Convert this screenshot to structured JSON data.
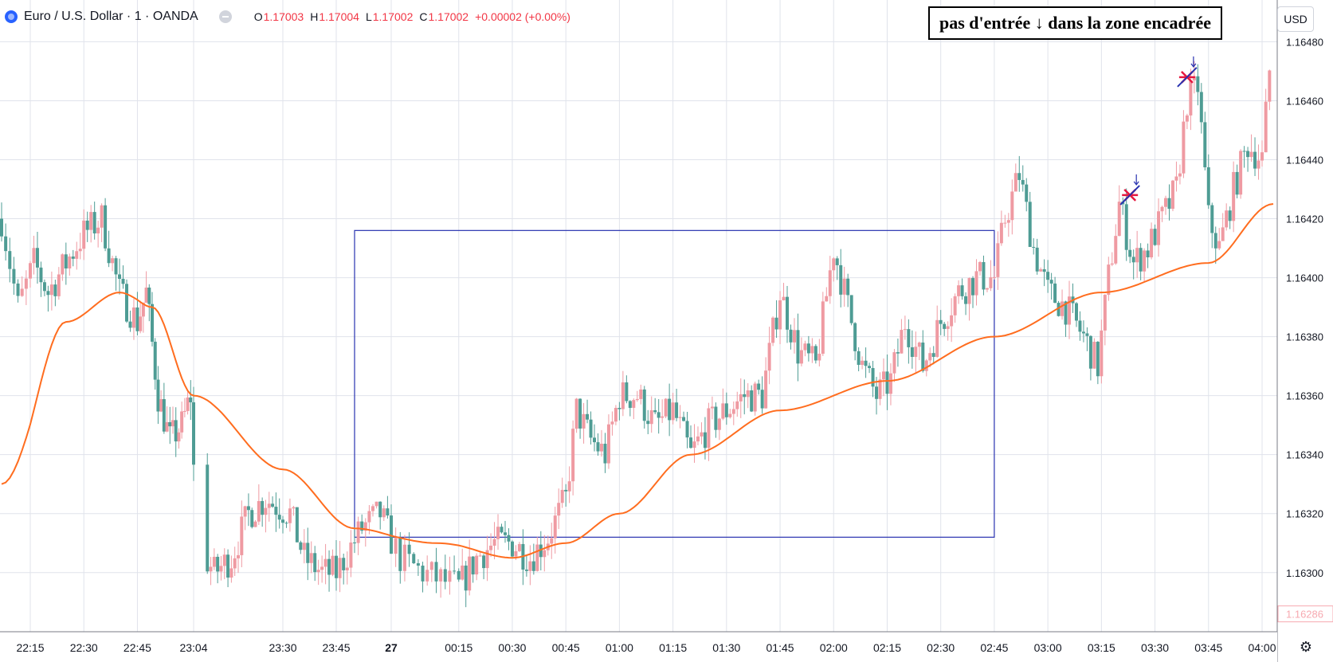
{
  "header": {
    "symbol": "Euro / U.S. Dollar · 1 · OANDA",
    "ohlc": {
      "o_label": "O",
      "o": "1.17003",
      "h_label": "H",
      "h": "1.17004",
      "l_label": "L",
      "l": "1.17002",
      "c_label": "C",
      "c": "1.17002",
      "change": "+0.00002 (+0.00%)"
    }
  },
  "note": "pas d'entrée ↓ dans la zone encadrée",
  "currency_button": "USD",
  "colors": {
    "up": "#ef9aa2",
    "down": "#4e9c94",
    "ma": "#ff6d1f",
    "box": "#2832b0",
    "grid": "#e0e3eb",
    "marker_x": "#e5173f",
    "marker_arrow": "#2832b0"
  },
  "chart_data": {
    "type": "candlestick",
    "ylim": [
      1.16284,
      1.16482
    ],
    "y_ticks": [
      "1.16300",
      "1.16320",
      "1.16340",
      "1.16360",
      "1.16380",
      "1.16400",
      "1.16420",
      "1.16440",
      "1.16460",
      "1.16480"
    ],
    "last_price_label": "1.16286",
    "x_ticks": [
      "22:15",
      "22:30",
      "22:45",
      "23:04",
      "23:30",
      "23:45",
      "27",
      "00:15",
      "00:30",
      "00:45",
      "01:00",
      "01:15",
      "01:30",
      "01:45",
      "02:00",
      "02:15",
      "02:30",
      "02:45",
      "03:00",
      "03:15",
      "03:30",
      "03:45",
      "04:00"
    ],
    "price_path": [
      [
        "22:08",
        1.1642
      ],
      [
        "22:12",
        1.1639
      ],
      [
        "22:16",
        1.16405
      ],
      [
        "22:20",
        1.16395
      ],
      [
        "22:25",
        1.16405
      ],
      [
        "22:30",
        1.16415
      ],
      [
        "22:35",
        1.1642
      ],
      [
        "22:40",
        1.16395
      ],
      [
        "22:45",
        1.16385
      ],
      [
        "22:48",
        1.16395
      ],
      [
        "22:52",
        1.1636
      ],
      [
        "22:56",
        1.16345
      ],
      [
        "23:00",
        1.1635
      ],
      [
        "23:03",
        1.1636
      ],
      [
        "23:05",
        1.1631
      ],
      [
        "23:10",
        1.163
      ],
      [
        "23:15",
        1.16305
      ],
      [
        "23:20",
        1.1632
      ],
      [
        "23:25",
        1.16325
      ],
      [
        "23:32",
        1.1632
      ],
      [
        "23:36",
        1.16305
      ],
      [
        "23:41",
        1.163
      ],
      [
        "23:45",
        1.163
      ],
      [
        "23:52",
        1.16315
      ],
      [
        "23:57",
        1.1632
      ],
      [
        "00:02",
        1.16305
      ],
      [
        "00:07",
        1.163
      ],
      [
        "00:15",
        1.16295
      ],
      [
        "00:20",
        1.16305
      ],
      [
        "00:25",
        1.1631
      ],
      [
        "00:30",
        1.1631
      ],
      [
        "00:35",
        1.16305
      ],
      [
        "00:40",
        1.16312
      ],
      [
        "00:45",
        1.16325
      ],
      [
        "00:48",
        1.16355
      ],
      [
        "00:52",
        1.16345
      ],
      [
        "00:56",
        1.1634
      ],
      [
        "01:00",
        1.1636
      ],
      [
        "01:05",
        1.1636
      ],
      [
        "01:10",
        1.1635
      ],
      [
        "01:15",
        1.16355
      ],
      [
        "01:20",
        1.1634
      ],
      [
        "01:25",
        1.1635
      ],
      [
        "01:30",
        1.16355
      ],
      [
        "01:35",
        1.1636
      ],
      [
        "01:40",
        1.1636
      ],
      [
        "01:45",
        1.16395
      ],
      [
        "01:50",
        1.16375
      ],
      [
        "01:55",
        1.1637
      ],
      [
        "02:00",
        1.1641
      ],
      [
        "02:05",
        1.16385
      ],
      [
        "02:08",
        1.1637
      ],
      [
        "02:12",
        1.1636
      ],
      [
        "02:16",
        1.16365
      ],
      [
        "02:20",
        1.16385
      ],
      [
        "02:25",
        1.1637
      ],
      [
        "02:30",
        1.16385
      ],
      [
        "02:35",
        1.16395
      ],
      [
        "02:40",
        1.164
      ],
      [
        "02:45",
        1.164
      ],
      [
        "02:48",
        1.1642
      ],
      [
        "02:52",
        1.16435
      ],
      [
        "02:56",
        1.1641
      ],
      [
        "03:00",
        1.16395
      ],
      [
        "03:05",
        1.1639
      ],
      [
        "03:10",
        1.1638
      ],
      [
        "03:14",
        1.1637
      ],
      [
        "03:17",
        1.164
      ],
      [
        "03:20",
        1.16425
      ],
      [
        "03:24",
        1.16405
      ],
      [
        "03:28",
        1.1641
      ],
      [
        "03:32",
        1.1642
      ],
      [
        "03:36",
        1.1643
      ],
      [
        "03:39",
        1.1646
      ],
      [
        "03:42",
        1.16465
      ],
      [
        "03:45",
        1.1642
      ],
      [
        "03:48",
        1.1641
      ],
      [
        "03:52",
        1.1643
      ],
      [
        "03:56",
        1.16445
      ],
      [
        "04:00",
        1.1644
      ],
      [
        "04:02",
        1.1647
      ]
    ],
    "moving_average": [
      [
        "22:08",
        1.1633
      ],
      [
        "22:25",
        1.16385
      ],
      [
        "22:40",
        1.16395
      ],
      [
        "22:50",
        1.1639
      ],
      [
        "23:04",
        1.1636
      ],
      [
        "23:30",
        1.16335
      ],
      [
        "23:50",
        1.16315
      ],
      [
        "00:10",
        1.1631
      ],
      [
        "00:30",
        1.16305
      ],
      [
        "00:45",
        1.1631
      ],
      [
        "01:00",
        1.1632
      ],
      [
        "01:20",
        1.1634
      ],
      [
        "01:45",
        1.16355
      ],
      [
        "02:15",
        1.16365
      ],
      [
        "02:45",
        1.1638
      ],
      [
        "03:15",
        1.16395
      ],
      [
        "03:45",
        1.16405
      ],
      [
        "04:03",
        1.16425
      ]
    ],
    "annotations": {
      "rectangle": {
        "time_start": "23:50",
        "time_end": "02:45",
        "price_low": 1.16312,
        "price_high": 1.16416
      },
      "markers": [
        {
          "time": "03:23",
          "price": 1.16428
        },
        {
          "time": "03:39",
          "price": 1.16468
        }
      ]
    }
  }
}
